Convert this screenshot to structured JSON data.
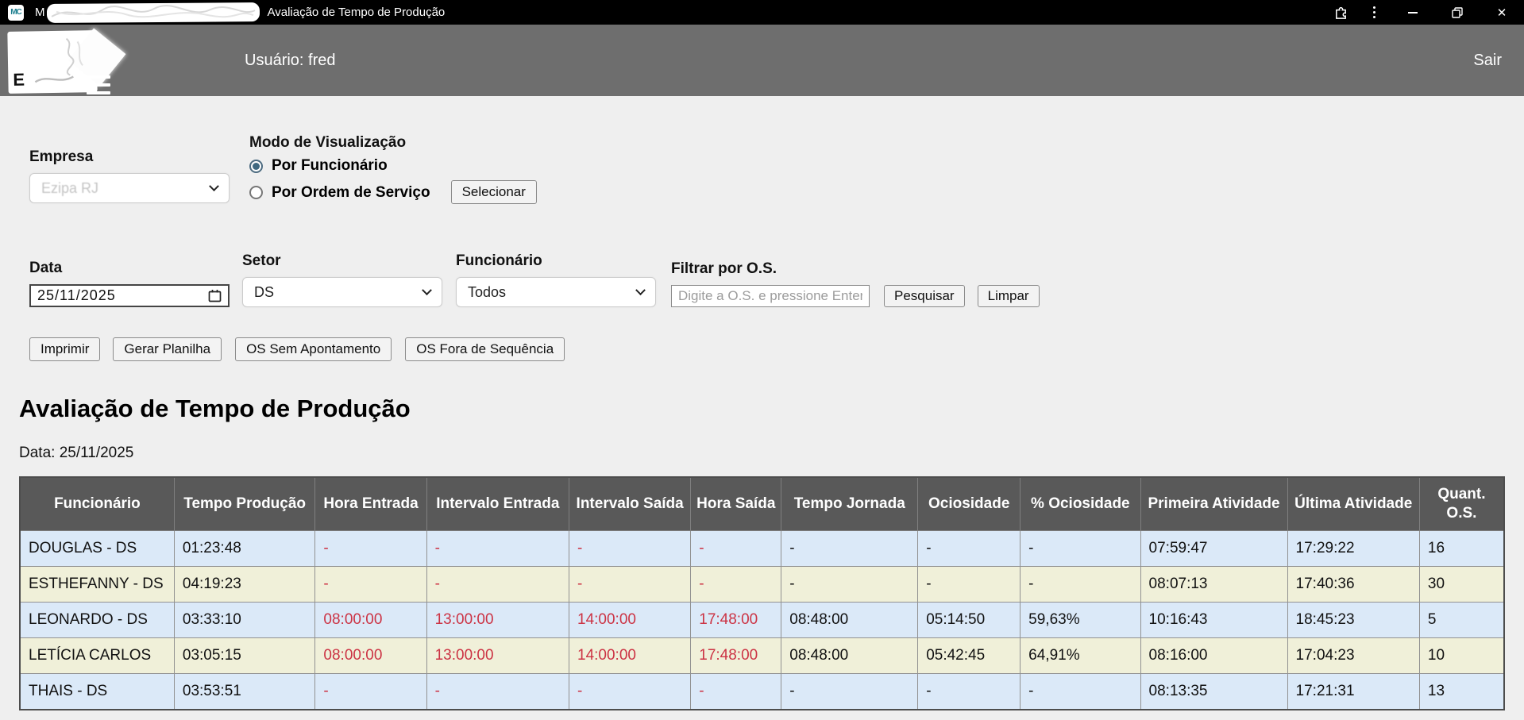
{
  "titlebar": {
    "title_prefix": "M",
    "title": "Avaliação de Tempo de Produção",
    "close": "✕"
  },
  "header": {
    "logo_letter": "E",
    "user": "Usuário: fred",
    "logout": "Sair"
  },
  "filters": {
    "empresa": {
      "label": "Empresa",
      "value": "Ezipa RJ"
    },
    "modo": {
      "label": "Modo de Visualização",
      "options": [
        {
          "label": "Por Funcionário",
          "selected": true
        },
        {
          "label": "Por Ordem de Serviço",
          "selected": false
        }
      ],
      "select_button": "Selecionar"
    },
    "data": {
      "label": "Data",
      "value": "25/11/2025"
    },
    "setor": {
      "label": "Setor",
      "value": "DS"
    },
    "funcionario": {
      "label": "Funcionário",
      "value": "Todos"
    },
    "os_filter": {
      "label": "Filtrar por O.S.",
      "placeholder": "Digite a O.S. e pressione Enter",
      "search_button": "Pesquisar",
      "clear_button": "Limpar"
    }
  },
  "actions": {
    "imprimir": "Imprimir",
    "gerar_planilha": "Gerar Planilha",
    "os_sem_apontamento": "OS Sem Apontamento",
    "os_fora_sequencia": "OS Fora de Sequência"
  },
  "report": {
    "title": "Avaliação de Tempo de Produção",
    "date_line": "Data: 25/11/2025",
    "table": {
      "columns": [
        "Funcionário",
        "Tempo Produção",
        "Hora Entrada",
        "Intervalo Entrada",
        "Intervalo Saída",
        "Hora Saída",
        "Tempo Jornada",
        "Ociosidade",
        "% Ociosidade",
        "Primeira Atividade",
        "Última Atividade",
        "Quant. O.S."
      ],
      "red_columns": [
        2,
        3,
        4,
        5
      ],
      "rows": [
        {
          "cells": [
            "DOUGLAS - DS",
            "01:23:48",
            "-",
            "-",
            "-",
            "-",
            "-",
            "-",
            "-",
            "07:59:47",
            "17:29:22",
            "16"
          ]
        },
        {
          "cells": [
            "ESTHEFANNY - DS",
            "04:19:23",
            "-",
            "-",
            "-",
            "-",
            "-",
            "-",
            "-",
            "08:07:13",
            "17:40:36",
            "30"
          ]
        },
        {
          "cells": [
            "LEONARDO - DS",
            "03:33:10",
            "08:00:00",
            "13:00:00",
            "14:00:00",
            "17:48:00",
            "08:48:00",
            "05:14:50",
            "59,63%",
            "10:16:43",
            "18:45:23",
            "5"
          ]
        },
        {
          "cells": [
            "LETÍCIA CARLOS",
            "03:05:15",
            "08:00:00",
            "13:00:00",
            "14:00:00",
            "17:48:00",
            "08:48:00",
            "05:42:45",
            "64,91%",
            "08:16:00",
            "17:04:23",
            "10"
          ]
        },
        {
          "cells": [
            "THAIS - DS",
            "03:53:51",
            "-",
            "-",
            "-",
            "-",
            "-",
            "-",
            "-",
            "08:13:35",
            "17:21:31",
            "13"
          ]
        }
      ]
    }
  },
  "colors": {
    "titlebar_bg": "#000000",
    "header_bg": "#6e6e6e",
    "page_bg": "#efefef",
    "table_header_bg": "#595959",
    "row_blue": "#dbe9f8",
    "row_yellow": "#f0f0d9",
    "alert_red": "#cc3344",
    "favicon_teal": "#1d7f8f"
  }
}
